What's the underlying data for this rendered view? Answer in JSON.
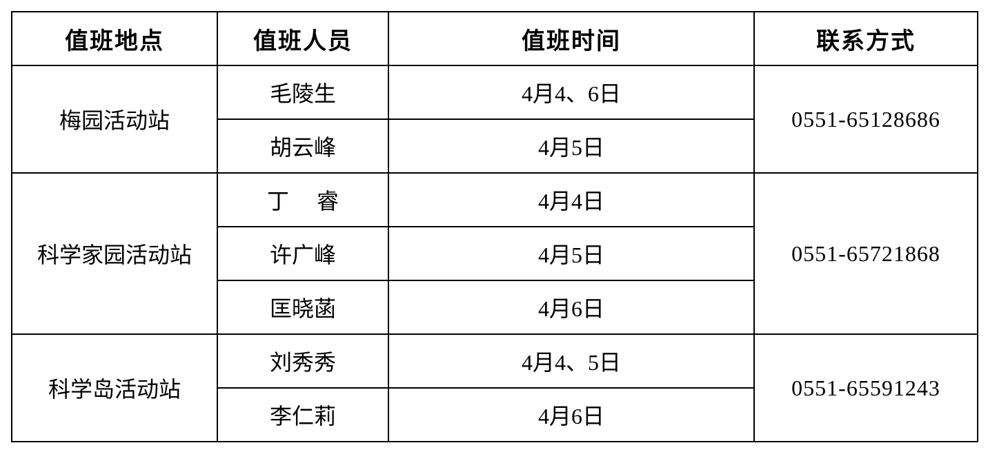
{
  "headers": [
    "值班地点",
    "值班人员",
    "值班时间",
    "联系方式"
  ],
  "groups": [
    {
      "location": "梅园活动站",
      "phone": "0551-65128686",
      "rows": [
        {
          "person": "毛陵生",
          "time": "4月4、6日"
        },
        {
          "person": "胡云峰",
          "time": "4月5日"
        }
      ]
    },
    {
      "location": "科学家园活动站",
      "phone": "0551-65721868",
      "rows": [
        {
          "person": "丁　 睿",
          "time": "4月4日"
        },
        {
          "person": "许广峰",
          "time": "4月5日"
        },
        {
          "person": "匡晓菡",
          "time": "4月6日"
        }
      ]
    },
    {
      "location": "科学岛活动站",
      "phone": "0551-65591243",
      "rows": [
        {
          "person": "刘秀秀",
          "time": "4月4、5日"
        },
        {
          "person": "李仁莉",
          "time": "4月6日"
        }
      ]
    }
  ]
}
